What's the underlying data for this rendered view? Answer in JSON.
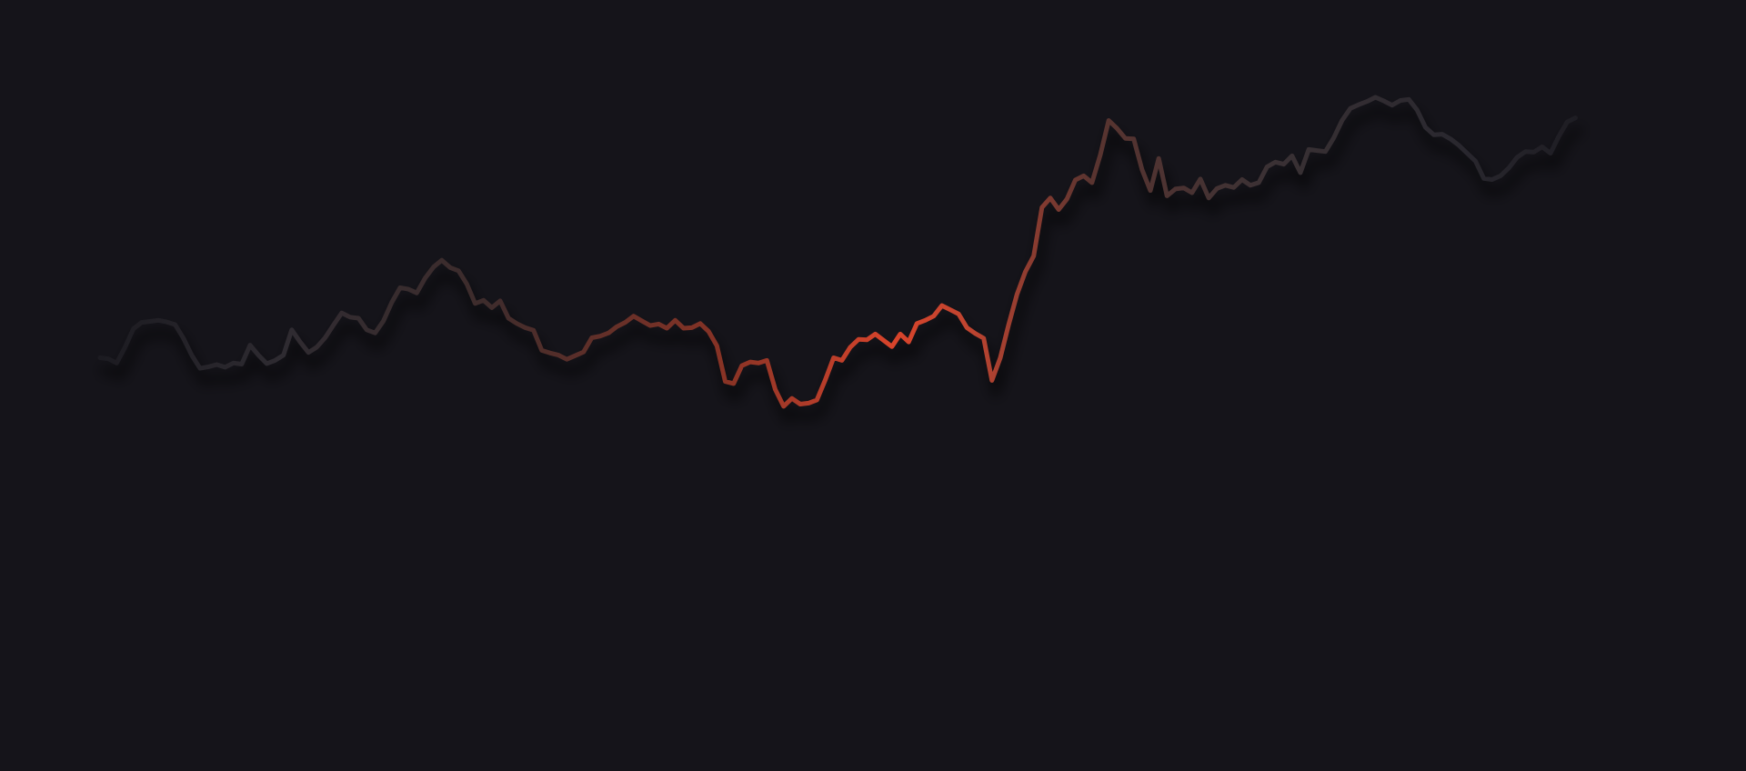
{
  "colors": {
    "background": "#15141a",
    "accent": "#d9442b",
    "muted": "#2a282f"
  },
  "chart_data": {
    "type": "line",
    "xlim": [
      0,
      180
    ],
    "ylim": [
      0,
      100
    ],
    "grid": false,
    "series": [
      {
        "values": [
          42.5,
          42.3,
          41.5,
          44.5,
          48.0,
          49.2,
          49.4,
          49.6,
          49.3,
          48.8,
          46.2,
          43.0,
          40.5,
          40.8,
          41.2,
          40.7,
          41.5,
          41.3,
          44.9,
          43.0,
          41.4,
          42.0,
          43.0,
          47.8,
          45.5,
          43.5,
          44.5,
          46.3,
          48.7,
          51.0,
          50.2,
          50.0,
          47.8,
          47.2,
          49.5,
          53.0,
          55.8,
          55.5,
          54.8,
          57.6,
          59.7,
          61.0,
          59.6,
          59.0,
          56.5,
          52.8,
          53.4,
          52.0,
          53.3,
          50.0,
          49.0,
          48.2,
          47.7,
          43.9,
          43.4,
          43.0,
          42.2,
          42.9,
          43.6,
          46.3,
          46.6,
          47.2,
          48.4,
          49.2,
          50.4,
          49.5,
          48.6,
          48.9,
          48.1,
          49.6,
          48.1,
          48.2,
          49.0,
          47.5,
          44.8,
          38.0,
          37.6,
          41.0,
          41.7,
          41.5,
          42.0,
          36.5,
          33.3,
          34.8,
          33.7,
          33.9,
          34.5,
          38.3,
          42.5,
          42.0,
          44.5,
          46.0,
          45.9,
          47.0,
          45.8,
          44.6,
          47.0,
          45.5,
          49.0,
          49.6,
          50.4,
          52.4,
          51.6,
          50.8,
          48.2,
          47.1,
          46.2,
          38.2,
          42.5,
          48.8,
          54.5,
          58.8,
          61.8,
          71.0,
          72.8,
          70.6,
          72.6,
          76.2,
          77.0,
          75.7,
          81.0,
          87.5,
          86.0,
          84.1,
          84.0,
          78.2,
          74.2,
          80.3,
          73.2,
          74.5,
          74.7,
          73.8,
          76.4,
          72.8,
          74.6,
          75.2,
          74.8,
          76.3,
          75.2,
          75.7,
          78.7,
          79.6,
          79.2,
          80.8,
          77.6,
          82.0,
          81.8,
          81.6,
          84.2,
          87.5,
          89.8,
          90.5,
          91.1,
          91.9,
          91.2,
          90.4,
          91.3,
          91.5,
          89.5,
          86.2,
          84.8,
          84.9,
          84.0,
          82.8,
          81.3,
          79.8,
          76.5,
          76.3,
          77.0,
          78.5,
          80.5,
          81.6,
          81.5,
          82.5,
          81.3,
          84.5,
          87.2,
          88.0
        ]
      }
    ]
  }
}
